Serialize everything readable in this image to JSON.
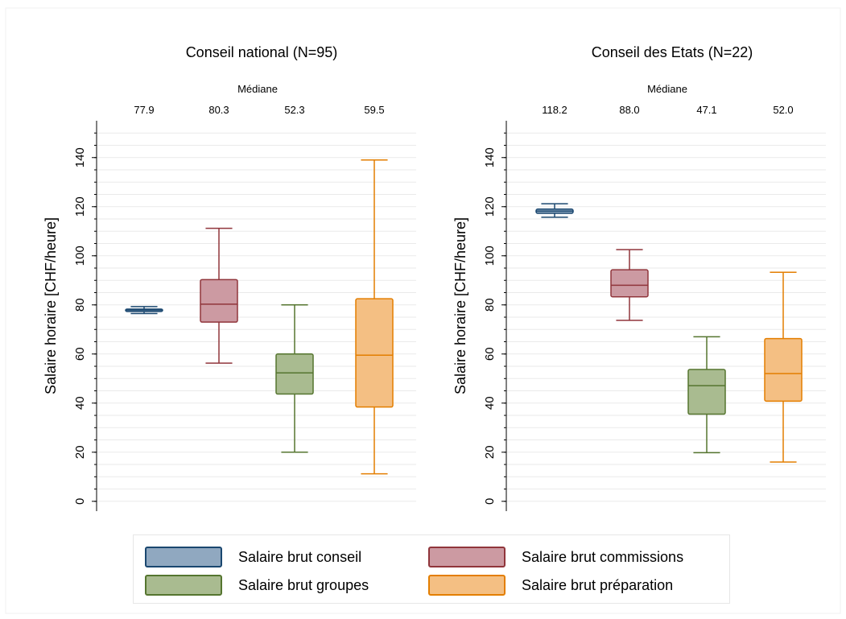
{
  "chart_data": [
    {
      "type": "box",
      "title": "Conseil national (N=95)",
      "ylabel": "Salaire horaire [CHF/heure]",
      "median_header": "Médiane",
      "ylim": [
        -4,
        155
      ],
      "yticks": [
        0,
        20,
        40,
        60,
        80,
        100,
        120,
        140
      ],
      "grid": true,
      "series": [
        {
          "name": "Salaire brut conseil",
          "min": 76.5,
          "q1": 77.3,
          "median": 77.9,
          "q3": 78.3,
          "max": 79.3,
          "median_label": "77.9"
        },
        {
          "name": "Salaire brut commissions",
          "min": 56.3,
          "q1": 73.0,
          "median": 80.3,
          "q3": 90.3,
          "max": 111.2,
          "median_label": "80.3"
        },
        {
          "name": "Salaire brut groupes",
          "min": 20.0,
          "q1": 43.7,
          "median": 52.3,
          "q3": 60.0,
          "max": 80.0,
          "median_label": "52.3"
        },
        {
          "name": "Salaire brut préparation",
          "min": 11.2,
          "q1": 38.4,
          "median": 59.5,
          "q3": 82.5,
          "max": 139.0,
          "median_label": "59.5"
        }
      ]
    },
    {
      "type": "box",
      "title": "Conseil des Etats (N=22)",
      "ylabel": "Salaire horaire [CHF/heure]",
      "median_header": "Médiane",
      "ylim": [
        -4,
        155
      ],
      "yticks": [
        0,
        20,
        40,
        60,
        80,
        100,
        120,
        140
      ],
      "grid": true,
      "series": [
        {
          "name": "Salaire brut conseil",
          "min": 115.7,
          "q1": 117.3,
          "median": 118.2,
          "q3": 119.0,
          "max": 121.2,
          "median_label": "118.2"
        },
        {
          "name": "Salaire brut commissions",
          "min": 73.7,
          "q1": 83.3,
          "median": 88.0,
          "q3": 94.3,
          "max": 102.5,
          "median_label": "88.0"
        },
        {
          "name": "Salaire brut groupes",
          "min": 19.8,
          "q1": 35.5,
          "median": 47.1,
          "q3": 53.7,
          "max": 67.0,
          "median_label": "47.1"
        },
        {
          "name": "Salaire brut préparation",
          "min": 16.0,
          "q1": 40.8,
          "median": 52.0,
          "q3": 66.3,
          "max": 93.3,
          "median_label": "52.0"
        }
      ]
    }
  ],
  "legend": {
    "placement": "bottom",
    "items": [
      {
        "label": "Salaire brut conseil",
        "fill": "#90a8c0",
        "stroke": "#1a476f"
      },
      {
        "label": "Salaire brut commissions",
        "fill": "#cc9aa2",
        "stroke": "#90353b"
      },
      {
        "label": "Salaire brut groupes",
        "fill": "#a9bb90",
        "stroke": "#55752f"
      },
      {
        "label": "Salaire brut préparation",
        "fill": "#f4bf83",
        "stroke": "#e37e00"
      }
    ]
  },
  "colors": {
    "conseil": {
      "fill": "#90a8c0",
      "stroke": "#1a476f"
    },
    "commissions": {
      "fill": "#cc9aa2",
      "stroke": "#90353b"
    },
    "groupes": {
      "fill": "#a9bb90",
      "stroke": "#55752f"
    },
    "preparation": {
      "fill": "#f4bf83",
      "stroke": "#e37e00"
    },
    "grid": "#eaeaea"
  }
}
